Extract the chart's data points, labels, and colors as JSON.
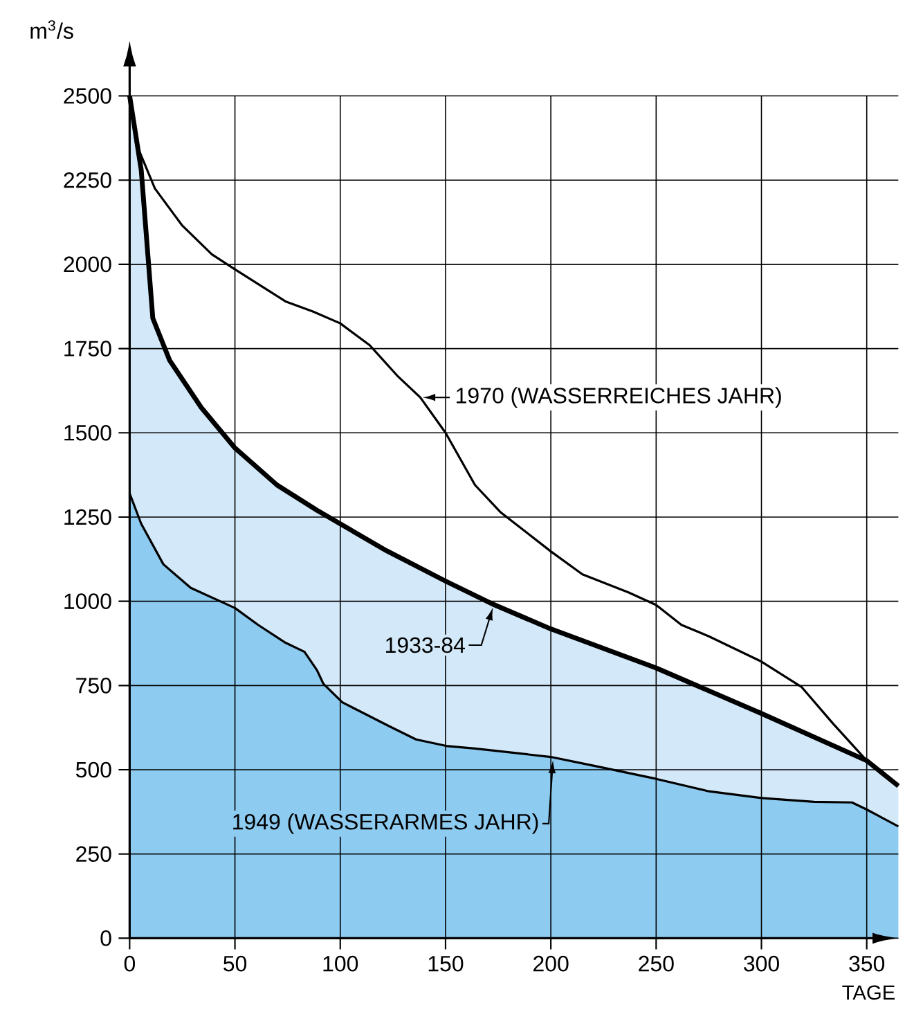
{
  "chart_data": {
    "type": "area",
    "xlabel": "TAGE",
    "ylabel": "m$^{3}$/s",
    "xlim": [
      0,
      365
    ],
    "ylim": [
      0,
      2500
    ],
    "xticks": [
      0,
      50,
      100,
      150,
      200,
      250,
      300,
      350
    ],
    "yticks": [
      0,
      250,
      500,
      750,
      1000,
      1250,
      1500,
      1750,
      2000,
      2250,
      2500
    ],
    "grid": true,
    "series": [
      {
        "name": "1933-84",
        "color": "#d3e9f9",
        "x": [
          0,
          5.5,
          11,
          19,
          34,
          50,
          70,
          89,
          100,
          122,
          150,
          173,
          200,
          250,
          300,
          350,
          365
        ],
        "values": [
          2500,
          2280,
          1840,
          1715,
          1575,
          1455,
          1345,
          1270,
          1230,
          1150,
          1060,
          990,
          918,
          802,
          667,
          527,
          452
        ]
      },
      {
        "name": "1949 (WASSERARMES JAHR)",
        "color": "#8ecbf0",
        "x": [
          0,
          5.5,
          16,
          29,
          50,
          61,
          74,
          83,
          89,
          92,
          101,
          123,
          136,
          151,
          164,
          200,
          221,
          250,
          275,
          300,
          325,
          343,
          350,
          365
        ],
        "values": [
          1320,
          1230,
          1110,
          1040,
          980,
          930,
          877,
          850,
          795,
          755,
          700,
          630,
          590,
          570,
          563,
          538,
          511,
          473,
          436,
          416,
          405,
          403,
          382,
          332
        ]
      },
      {
        "name": "1970 (WASSERREICHES JAHR)",
        "type": "line",
        "color": "#000000",
        "x": [
          0,
          3,
          12,
          25,
          39,
          50,
          74,
          87,
          100,
          114,
          127,
          138,
          150,
          164,
          176,
          200,
          215,
          237,
          250,
          262,
          275,
          300,
          319,
          334,
          350,
          365
        ],
        "values": [
          2500,
          2360,
          2225,
          2115,
          2030,
          1985,
          1890,
          1860,
          1825,
          1760,
          1670,
          1605,
          1500,
          1345,
          1265,
          1148,
          1080,
          1026,
          989,
          930,
          896,
          821,
          746,
          637,
          527,
          452
        ]
      }
    ]
  }
}
